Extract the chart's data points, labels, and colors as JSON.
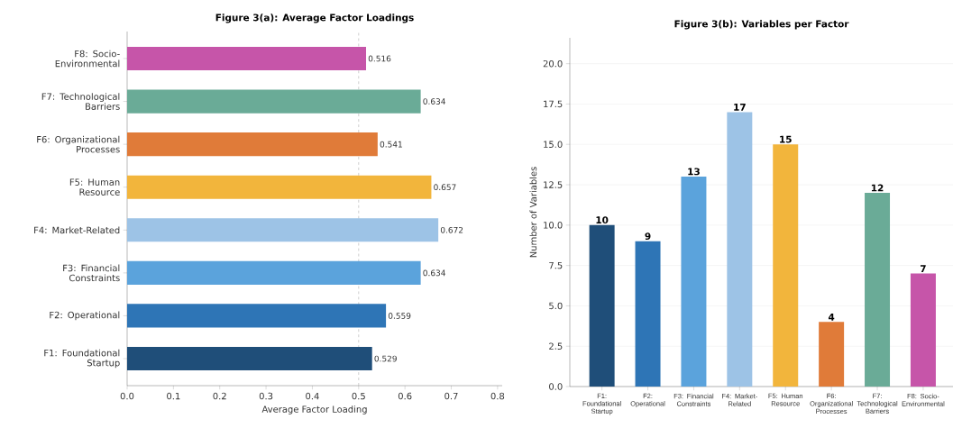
{
  "chart_data": [
    {
      "type": "bar",
      "orientation": "horizontal",
      "title": "Figure 3(a): Average Factor Loadings",
      "xlabel": "Average Factor Loading",
      "categories": [
        "F8: Socio-Environmental",
        "F7: Technological Barriers",
        "F6: Organizational Processes",
        "F5: Human Resource",
        "F4: Market-Related",
        "F3: Financial Constraints",
        "F2: Operational",
        "F1: Foundational Startup"
      ],
      "values": [
        0.516,
        0.634,
        0.541,
        0.657,
        0.672,
        0.634,
        0.559,
        0.529
      ],
      "colors": [
        "#c655a9",
        "#6aab97",
        "#e07b39",
        "#f2b53c",
        "#9dc3e6",
        "#5ba3dc",
        "#2e75b6",
        "#1f4e79"
      ],
      "xlim": [
        0,
        0.81
      ],
      "xticks": [
        {
          "value": 0,
          "label": "0.0"
        },
        0.1,
        0.2,
        0.3,
        0.4,
        0.5,
        0.6,
        0.7,
        0.8
      ],
      "ref_lines": [
        {
          "axis": "x",
          "value": 0.5,
          "color": "#b0b0b0",
          "line_style": "dashed"
        }
      ],
      "data_labels": true
    },
    {
      "type": "bar",
      "title": "Figure 3(b): Variables per Factor",
      "ylabel": "Number of Variables",
      "categories": [
        "F1: Foundational Startup",
        "F2: Operational",
        "F3: Financial Constraints",
        "F4: Market-Related",
        "F5: Human Resource",
        "F6: Organizational Processes",
        "F7: Technological Barriers",
        "F8: Socio-Environmental"
      ],
      "values": [
        10,
        9,
        13,
        17,
        15,
        4,
        12,
        7
      ],
      "colors": [
        "#1f4e79",
        "#2e75b6",
        "#5ba3dc",
        "#9dc3e6",
        "#f2b53c",
        "#e07b39",
        "#6aab97",
        "#c655a9"
      ],
      "ylim": [
        0,
        21.6
      ],
      "yticks": [
        {
          "value": 0,
          "label": "0.0"
        },
        {
          "value": 2.5,
          "label": "2.5"
        },
        {
          "value": 5,
          "label": "5.0"
        },
        {
          "value": 7.5,
          "label": "7.5"
        },
        {
          "value": 10,
          "label": "10.0"
        },
        {
          "value": 12.5,
          "label": "12.5"
        },
        {
          "value": 15,
          "label": "15.0"
        },
        {
          "value": 17.5,
          "label": "17.5"
        },
        {
          "value": 20,
          "label": "20.0"
        }
      ],
      "grid": "y",
      "data_labels": true
    }
  ]
}
